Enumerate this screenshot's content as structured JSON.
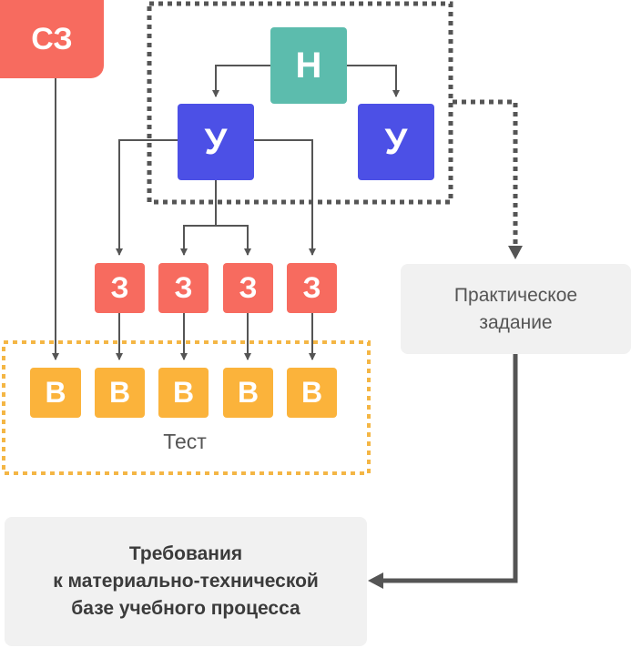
{
  "nodes": {
    "sz": "СЗ",
    "n": "Н",
    "u_left": "У",
    "u_right": "У",
    "z": [
      "З",
      "З",
      "З",
      "З"
    ],
    "v": [
      "В",
      "В",
      "В",
      "В",
      "В"
    ]
  },
  "test_label": "Тест",
  "practical_task": "Практическое\nзадание",
  "requirements": "Требования\nк материально-технической\nбазе учебного процесса",
  "colors": {
    "sz": "#f76b5f",
    "n": "#5cbcad",
    "u": "#4c50e6",
    "z": "#f76b5f",
    "v": "#fbb33b",
    "gray_box": "#f1f1f1",
    "line": "#555555",
    "dotted_frame": "#555555",
    "test_frame": "#f4b645"
  }
}
